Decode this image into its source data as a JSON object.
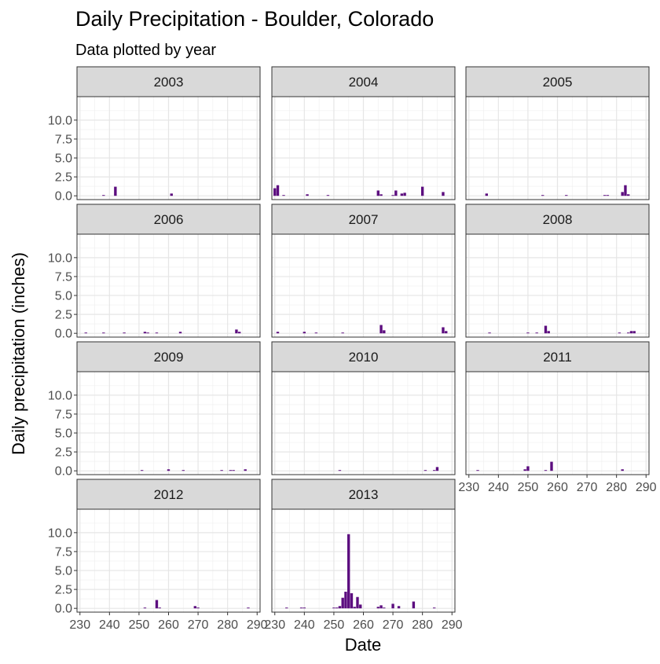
{
  "chart_data": {
    "type": "bar",
    "title": "Daily Precipitation - Boulder, Colorado",
    "subtitle": "Data plotted by year",
    "xlabel": "Date",
    "ylabel": "Daily precipitation (inches)",
    "xlim": [
      229,
      291
    ],
    "ylim": [
      -0.5,
      13.1
    ],
    "x_ticks": [
      230,
      240,
      250,
      260,
      270,
      280,
      290
    ],
    "y_ticks": [
      0,
      2.5,
      5,
      7.5,
      10
    ],
    "y_tick_labels": [
      "0.0",
      "2.5",
      "5.0",
      "7.5",
      "10.0"
    ],
    "grid": true,
    "bar_color": "#5c0d7f",
    "facets": [
      {
        "label": "2003",
        "x": [
          238,
          242,
          261
        ],
        "values": [
          0.1,
          1.2,
          0.3
        ]
      },
      {
        "label": "2004",
        "x": [
          230,
          231,
          233,
          241,
          248,
          265,
          266,
          270,
          271,
          273,
          274,
          280,
          287
        ],
        "values": [
          1.0,
          1.4,
          0.1,
          0.2,
          0.1,
          0.7,
          0.2,
          0.1,
          0.7,
          0.3,
          0.4,
          1.2,
          0.5
        ]
      },
      {
        "label": "2005",
        "x": [
          236,
          255,
          263,
          276,
          277,
          282,
          283,
          284
        ],
        "values": [
          0.3,
          0.1,
          0.1,
          0.1,
          0.1,
          0.5,
          1.4,
          0.2
        ]
      },
      {
        "label": "2006",
        "x": [
          232,
          238,
          245,
          252,
          253,
          256,
          264,
          283,
          284
        ],
        "values": [
          0.1,
          0.1,
          0.1,
          0.2,
          0.1,
          0.1,
          0.2,
          0.5,
          0.2
        ]
      },
      {
        "label": "2007",
        "x": [
          231,
          240,
          244,
          253,
          266,
          267,
          287,
          288
        ],
        "values": [
          0.2,
          0.2,
          0.1,
          0.1,
          1.1,
          0.4,
          0.8,
          0.3
        ]
      },
      {
        "label": "2008",
        "x": [
          237,
          250,
          253,
          256,
          257,
          281,
          284,
          285,
          286
        ],
        "values": [
          0.1,
          0.1,
          0.1,
          1.0,
          0.3,
          0.1,
          0.1,
          0.3,
          0.3
        ]
      },
      {
        "label": "2009",
        "x": [
          251,
          260,
          265,
          278,
          281,
          282,
          286
        ],
        "values": [
          0.1,
          0.2,
          0.1,
          0.1,
          0.1,
          0.1,
          0.2
        ]
      },
      {
        "label": "2010",
        "x": [
          252,
          281,
          284,
          285
        ],
        "values": [
          0.1,
          0.1,
          0.1,
          0.5
        ]
      },
      {
        "label": "2011",
        "x": [
          233,
          249,
          250,
          256,
          258,
          282
        ],
        "values": [
          0.1,
          0.2,
          0.6,
          0.1,
          1.2,
          0.2
        ]
      },
      {
        "label": "2012",
        "x": [
          252,
          256,
          257,
          269,
          270,
          287
        ],
        "values": [
          0.1,
          1.1,
          0.1,
          0.3,
          0.1,
          0.1
        ]
      },
      {
        "label": "2013",
        "x": [
          234,
          239,
          240,
          250,
          251,
          252,
          253,
          254,
          255,
          256,
          257,
          258,
          259,
          265,
          266,
          267,
          270,
          272,
          277,
          284
        ],
        "values": [
          0.1,
          0.1,
          0.1,
          0.1,
          0.1,
          0.3,
          1.4,
          2.2,
          9.8,
          2.0,
          0.2,
          1.5,
          0.5,
          0.2,
          0.4,
          0.1,
          0.6,
          0.3,
          0.9,
          0.1
        ]
      }
    ]
  }
}
